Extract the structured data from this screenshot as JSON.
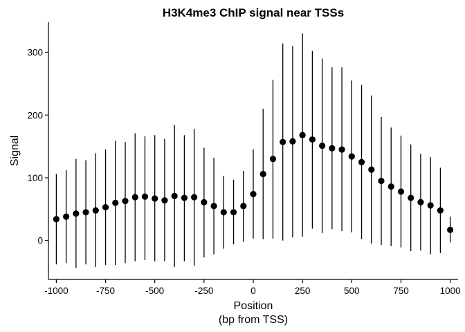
{
  "chart_data": {
    "type": "scatter",
    "title": "H3K4me3 ChIP signal near TSSs",
    "xlabel": "Position",
    "xlabel_sub": "(bp from TSS)",
    "ylabel": "Signal",
    "xlim": [
      -1040,
      1040
    ],
    "ylim": [
      -62,
      348
    ],
    "x_ticks": [
      -1000,
      -750,
      -500,
      -250,
      0,
      250,
      500,
      750,
      1000
    ],
    "y_ticks": [
      0,
      100,
      200,
      300
    ],
    "grid": false,
    "series": [
      {
        "name": "Signal",
        "points": [
          {
            "x": -1000,
            "y": 34,
            "lo": -38,
            "hi": 106
          },
          {
            "x": -950,
            "y": 38,
            "lo": -36,
            "hi": 112
          },
          {
            "x": -900,
            "y": 43,
            "lo": -44,
            "hi": 130
          },
          {
            "x": -850,
            "y": 45,
            "lo": -38,
            "hi": 128
          },
          {
            "x": -800,
            "y": 48,
            "lo": -42,
            "hi": 139
          },
          {
            "x": -750,
            "y": 53,
            "lo": -39,
            "hi": 145
          },
          {
            "x": -700,
            "y": 60,
            "lo": -39,
            "hi": 159
          },
          {
            "x": -650,
            "y": 63,
            "lo": -36,
            "hi": 157
          },
          {
            "x": -600,
            "y": 69,
            "lo": -33,
            "hi": 171
          },
          {
            "x": -550,
            "y": 70,
            "lo": -31,
            "hi": 166
          },
          {
            "x": -500,
            "y": 67,
            "lo": -33,
            "hi": 168
          },
          {
            "x": -450,
            "y": 64,
            "lo": -33,
            "hi": 162
          },
          {
            "x": -400,
            "y": 71,
            "lo": -42,
            "hi": 184
          },
          {
            "x": -350,
            "y": 68,
            "lo": -33,
            "hi": 168
          },
          {
            "x": -300,
            "y": 69,
            "lo": -40,
            "hi": 178
          },
          {
            "x": -250,
            "y": 61,
            "lo": -27,
            "hi": 148
          },
          {
            "x": -200,
            "y": 55,
            "lo": -22,
            "hi": 132
          },
          {
            "x": -150,
            "y": 45,
            "lo": -13,
            "hi": 103
          },
          {
            "x": -100,
            "y": 45,
            "lo": -6,
            "hi": 97
          },
          {
            "x": -50,
            "y": 55,
            "lo": -2,
            "hi": 111
          },
          {
            "x": 0,
            "y": 74,
            "lo": 3,
            "hi": 145
          },
          {
            "x": 50,
            "y": 106,
            "lo": 2,
            "hi": 210
          },
          {
            "x": 100,
            "y": 130,
            "lo": 3,
            "hi": 256
          },
          {
            "x": 150,
            "y": 157,
            "lo": 0,
            "hi": 314
          },
          {
            "x": 200,
            "y": 158,
            "lo": 5,
            "hi": 310
          },
          {
            "x": 250,
            "y": 168,
            "lo": 6,
            "hi": 330
          },
          {
            "x": 300,
            "y": 161,
            "lo": 19,
            "hi": 302
          },
          {
            "x": 350,
            "y": 151,
            "lo": 12,
            "hi": 290
          },
          {
            "x": 400,
            "y": 147,
            "lo": 18,
            "hi": 276
          },
          {
            "x": 450,
            "y": 145,
            "lo": 15,
            "hi": 276
          },
          {
            "x": 500,
            "y": 134,
            "lo": 13,
            "hi": 255
          },
          {
            "x": 550,
            "y": 125,
            "lo": 2,
            "hi": 248
          },
          {
            "x": 600,
            "y": 113,
            "lo": -5,
            "hi": 231
          },
          {
            "x": 650,
            "y": 95,
            "lo": -7,
            "hi": 197
          },
          {
            "x": 700,
            "y": 86,
            "lo": -9,
            "hi": 180
          },
          {
            "x": 750,
            "y": 78,
            "lo": -11,
            "hi": 167
          },
          {
            "x": 800,
            "y": 68,
            "lo": -17,
            "hi": 153
          },
          {
            "x": 850,
            "y": 61,
            "lo": -16,
            "hi": 138
          },
          {
            "x": 900,
            "y": 56,
            "lo": -22,
            "hi": 133
          },
          {
            "x": 950,
            "y": 48,
            "lo": -20,
            "hi": 116
          },
          {
            "x": 1000,
            "y": 17,
            "lo": -3,
            "hi": 38
          }
        ]
      }
    ]
  }
}
